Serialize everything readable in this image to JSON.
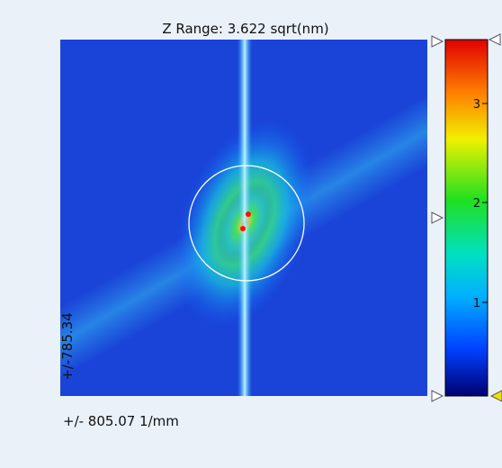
{
  "header": {
    "title": "Z Range:  3.622 sqrt(nm)"
  },
  "image": {
    "y_label": "+/-785.34",
    "x_label": "+/- 805.07 1/mm"
  },
  "colorbar": {
    "ticks": [
      "3",
      "2",
      "1"
    ]
  }
}
